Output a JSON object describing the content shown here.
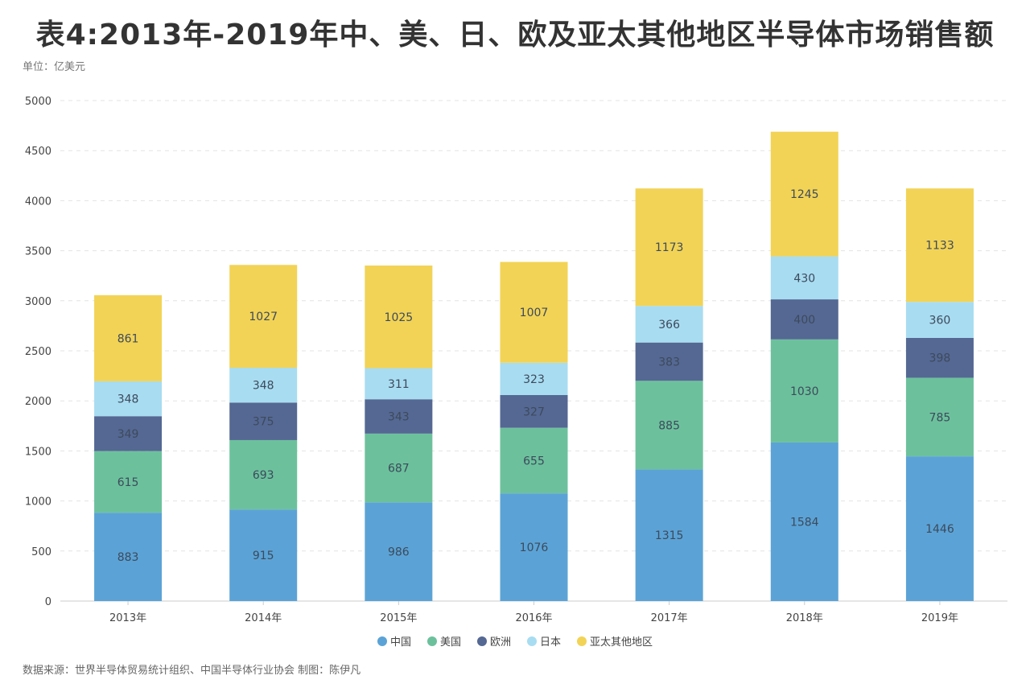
{
  "title": "表4:2013年-2019年中、美、日、欧及亚太其他地区半导体市场销售额",
  "unit": "单位：亿美元",
  "source": "数据来源：世界半导体贸易统计组织、中国半导体行业协会 制图：陈伊凡",
  "colors": {
    "中国": "#5ba3d6",
    "美国": "#6cc19c",
    "欧洲": "#546893",
    "日本": "#a8dcf1",
    "亚太其他地区": "#f2d355",
    "grid": "#e3e3e3",
    "axis": "#cccccc"
  },
  "chart_data": {
    "type": "bar",
    "stacked": true,
    "categories": [
      "2013年",
      "2014年",
      "2015年",
      "2016年",
      "2017年",
      "2018年",
      "2019年"
    ],
    "series": [
      {
        "name": "中国",
        "values": [
          883,
          915,
          986,
          1076,
          1315,
          1584,
          1446
        ]
      },
      {
        "name": "美国",
        "values": [
          615,
          693,
          687,
          655,
          885,
          1030,
          785
        ]
      },
      {
        "name": "欧洲",
        "values": [
          349,
          375,
          343,
          327,
          383,
          400,
          398
        ]
      },
      {
        "name": "日本",
        "values": [
          348,
          348,
          311,
          323,
          366,
          430,
          360
        ]
      },
      {
        "name": "亚太其他地区",
        "values": [
          861,
          1027,
          1025,
          1007,
          1173,
          1245,
          1133
        ]
      }
    ],
    "legend": [
      "中国",
      "美国",
      "欧洲",
      "日本",
      "亚太其他地区"
    ],
    "legend_position": "bottom",
    "ylim": [
      0,
      5000
    ],
    "yticks": [
      0,
      500,
      1000,
      1500,
      2000,
      2500,
      3000,
      3500,
      4000,
      4500,
      5000
    ],
    "grid": true,
    "xlabel": "",
    "ylabel": ""
  }
}
